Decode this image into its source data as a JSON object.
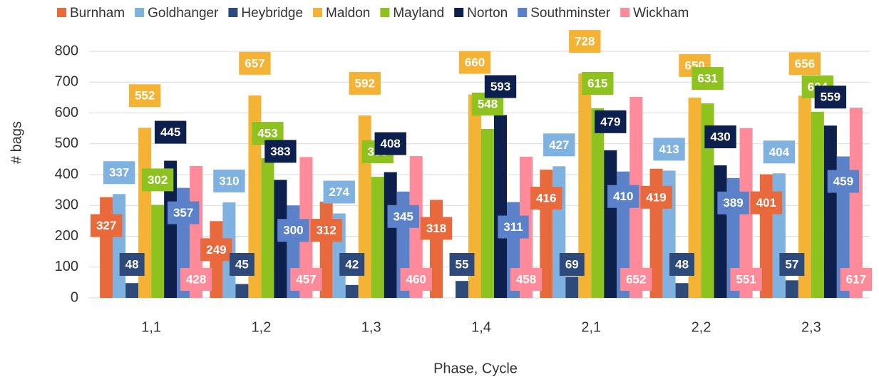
{
  "chart_data": {
    "type": "bar",
    "x_label": "Phase, Cycle",
    "y_label": "# bags",
    "categories": [
      "1,1",
      "1,2",
      "1,3",
      "1,4",
      "2,1",
      "2,2",
      "2,3"
    ],
    "series": [
      {
        "name": "Burnham",
        "color": "#e8693c",
        "values": [
          327,
          249,
          312,
          318,
          416,
          419,
          401
        ]
      },
      {
        "name": "Goldhanger",
        "color": "#7fb2e0",
        "values": [
          337,
          310,
          274,
          null,
          427,
          413,
          404
        ]
      },
      {
        "name": "Heybridge",
        "color": "#2e4a7a",
        "values": [
          48,
          45,
          42,
          55,
          69,
          48,
          57
        ]
      },
      {
        "name": "Maldon",
        "color": "#f5b335",
        "values": [
          552,
          657,
          592,
          660,
          728,
          650,
          656
        ]
      },
      {
        "name": "Mayland",
        "color": "#8dc21f",
        "values": [
          302,
          453,
          393,
          548,
          615,
          631,
          604
        ]
      },
      {
        "name": "Norton",
        "color": "#0c1f4d",
        "values": [
          445,
          383,
          408,
          593,
          479,
          430,
          559
        ]
      },
      {
        "name": "Southminster",
        "color": "#5b82c8",
        "values": [
          357,
          300,
          345,
          311,
          410,
          389,
          459
        ]
      },
      {
        "name": "Wickham",
        "color": "#ff8a9a",
        "values": [
          428,
          457,
          460,
          458,
          652,
          551,
          617
        ]
      }
    ],
    "ylim": [
      0,
      800
    ],
    "yticks": [
      0,
      100,
      200,
      300,
      400,
      500,
      600,
      700,
      800
    ],
    "grid": true,
    "legend": "top"
  }
}
